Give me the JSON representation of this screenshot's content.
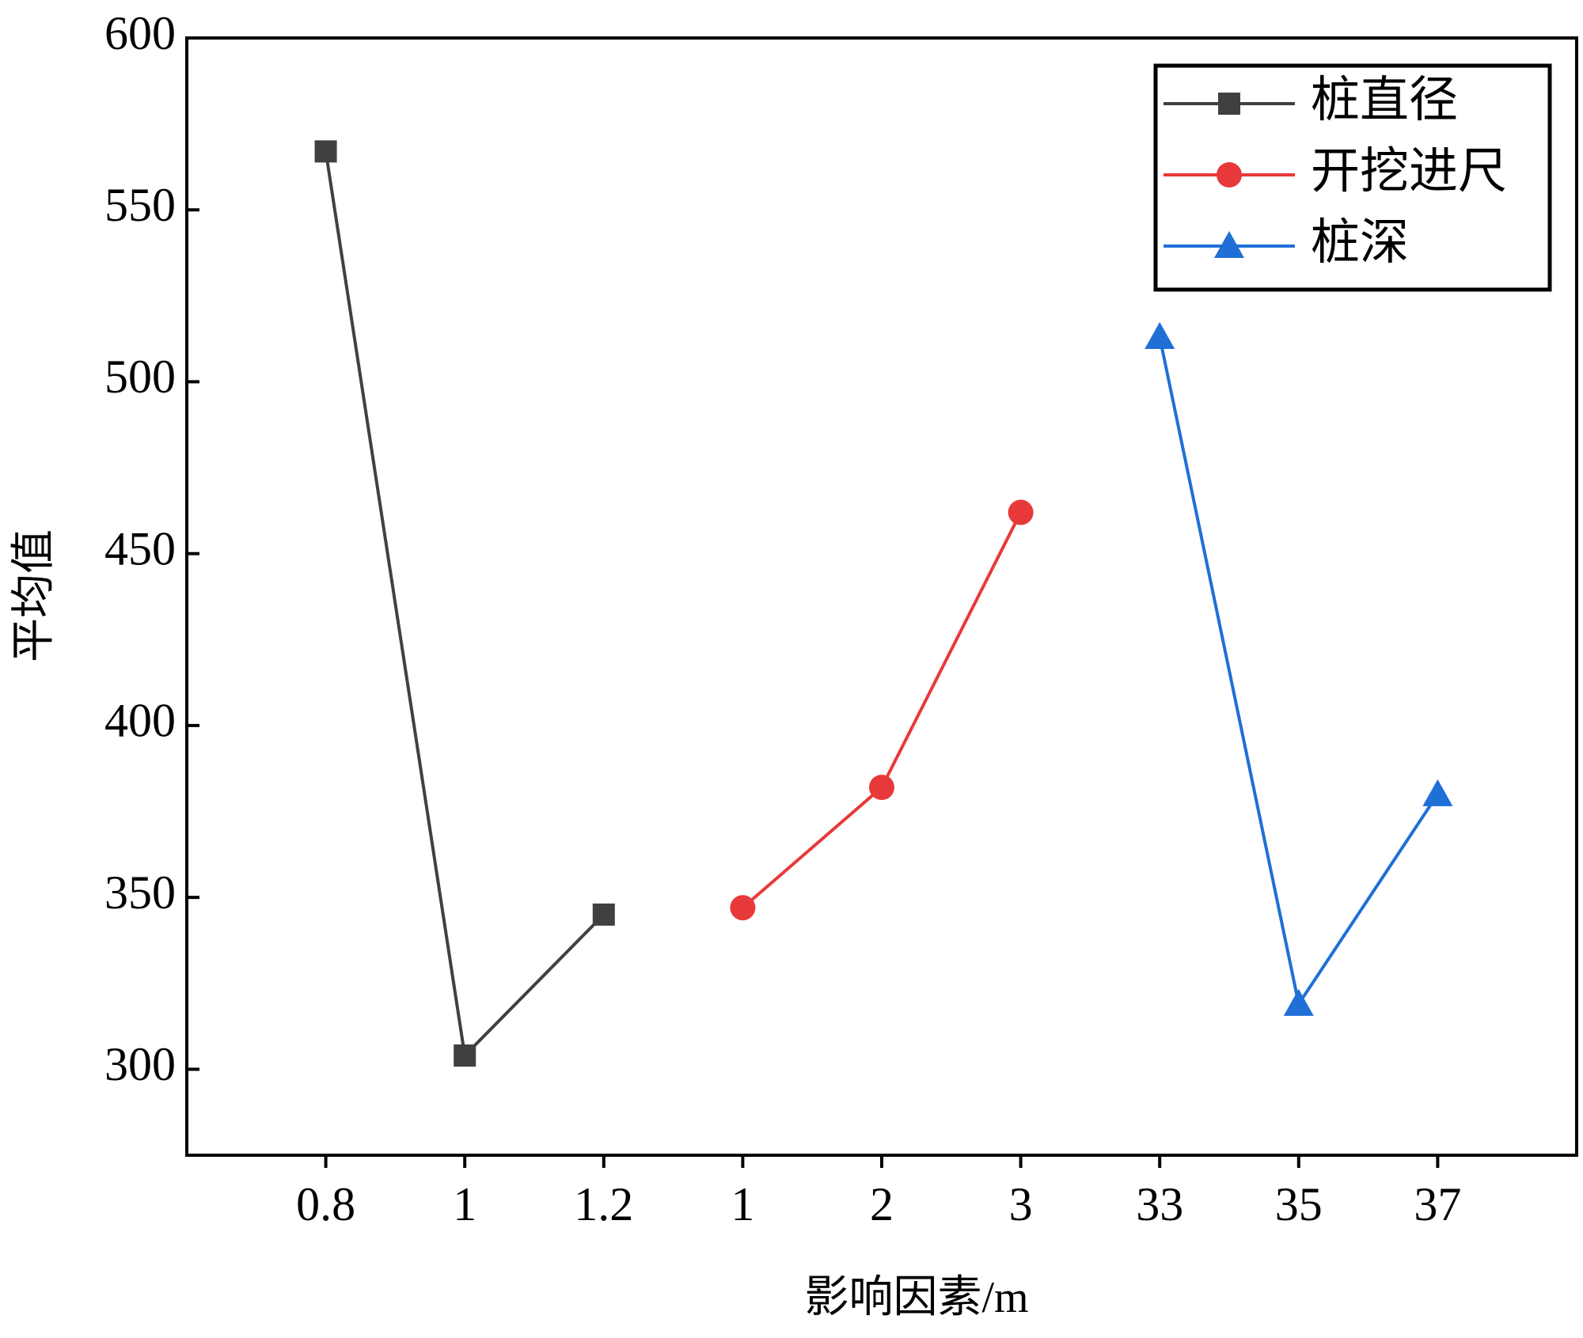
{
  "chart_data": {
    "type": "line",
    "xlabel": "影响因素/m",
    "ylabel": "平均值",
    "categories": [
      "0.8",
      "1",
      "1.2",
      "1",
      "2",
      "3",
      "33",
      "35",
      "37"
    ],
    "series": [
      {
        "name": "桩直径",
        "color": "#404040",
        "marker": "square",
        "values": [
          567,
          304,
          345,
          null,
          null,
          null,
          null,
          null,
          null
        ]
      },
      {
        "name": "开挖进尺",
        "color": "#e8393a",
        "marker": "circle",
        "values": [
          null,
          null,
          null,
          347,
          382,
          462,
          null,
          null,
          null
        ]
      },
      {
        "name": "桩深",
        "color": "#1f6fd6",
        "marker": "triangle",
        "values": [
          null,
          null,
          null,
          null,
          null,
          null,
          513,
          319,
          380
        ]
      }
    ],
    "ylim": [
      275,
      600
    ],
    "yticks": [
      300,
      350,
      400,
      450,
      500,
      550,
      600
    ],
    "legend": "upper right"
  }
}
